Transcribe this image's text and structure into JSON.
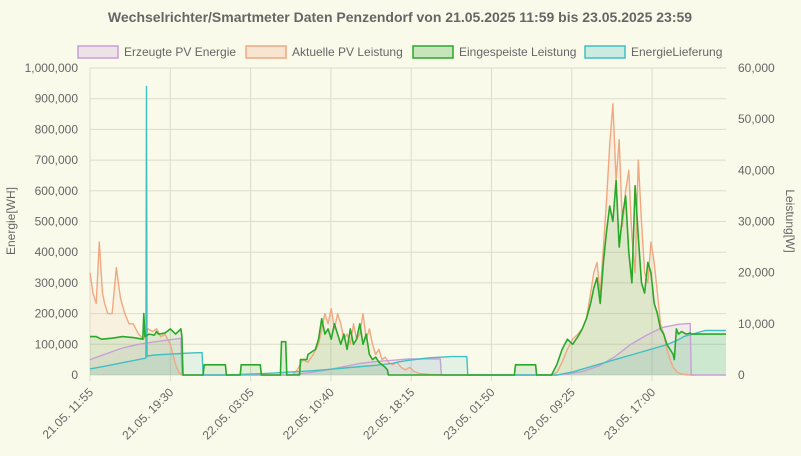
{
  "chart_data": {
    "type": "line",
    "title": "Wechselrichter/Smartmeter Daten Penzendorf von 21.05.2025 11:59 bis 23.05.2025 23:59",
    "ylabel_left": "Energie[WH]",
    "ylabel_right": "Leistung[W]",
    "ylim_left": [
      0,
      1000000
    ],
    "ylim_right": [
      0,
      60000
    ],
    "yticks_left": [
      "0",
      "100,000",
      "200,000",
      "300,000",
      "400,000",
      "500,000",
      "600,000",
      "700,000",
      "800,000",
      "900,000",
      "1,000,000"
    ],
    "yticks_right": [
      "0",
      "10,000",
      "20,000",
      "30,000",
      "40,000",
      "50,000",
      "60,000"
    ],
    "x_domain": [
      11.917,
      71.983
    ],
    "x_ticks": [
      {
        "t": 11.917,
        "label": "21.05. 11:55"
      },
      {
        "t": 19.5,
        "label": "21.05. 19:30"
      },
      {
        "t": 27.083,
        "label": "22.05. 03:05"
      },
      {
        "t": 34.667,
        "label": "22.05. 10:40"
      },
      {
        "t": 42.25,
        "label": "22.05. 18:15"
      },
      {
        "t": 49.833,
        "label": "23.05. 01:50"
      },
      {
        "t": 57.417,
        "label": "23.05. 09:25"
      },
      {
        "t": 65.0,
        "label": "23.05. 17:00"
      }
    ],
    "legend_position": "top",
    "grid": true,
    "series": [
      {
        "name": "Erzeugte PV Energie",
        "axis": "left",
        "stroke": "#c8a0d8",
        "fill": "rgba(200,160,216,0.15)",
        "x": [
          11.917,
          13.5,
          15,
          16.5,
          18,
          19.5,
          20.2,
          20.5,
          20.6,
          30.5,
          31.5,
          33,
          34.5,
          36,
          37.5,
          39,
          40.5,
          42,
          42.5,
          45,
          45.1,
          56,
          57,
          58.5,
          60,
          61.5,
          63,
          64.5,
          66,
          67.5,
          68.6,
          68.7,
          71.983
        ],
        "y": [
          50000,
          70000,
          88000,
          100000,
          108000,
          115000,
          118000,
          120000,
          0,
          0,
          3000,
          9000,
          18000,
          28000,
          38000,
          44000,
          48000,
          52000,
          52500,
          52500,
          0,
          0,
          3000,
          12000,
          30000,
          60000,
          100000,
          130000,
          155000,
          165000,
          168000,
          0,
          0
        ]
      },
      {
        "name": "Aktuelle PV Leistung",
        "axis": "right",
        "stroke": "#f0a880",
        "fill": "rgba(240,168,128,0.10)",
        "x": [
          11.917,
          12.2,
          12.5,
          12.8,
          13.1,
          13.3,
          13.6,
          14,
          14.4,
          14.8,
          15.2,
          15.6,
          16,
          16.5,
          17,
          17.4,
          17.8,
          18.2,
          18.6,
          19,
          19.5,
          20,
          20.3,
          20.6,
          31,
          31.5,
          32,
          32.5,
          33,
          33.5,
          33.8,
          34.1,
          34.4,
          34.7,
          35,
          35.3,
          35.6,
          35.9,
          36.2,
          36.5,
          36.8,
          37.1,
          37.4,
          37.7,
          38,
          38.3,
          38.6,
          38.9,
          39.2,
          39.5,
          39.8,
          40.1,
          40.5,
          40.9,
          41.3,
          41.7,
          42.1,
          42.5,
          43,
          44,
          45,
          45.5,
          55.5,
          56,
          56.5,
          57,
          57.5,
          58,
          58.4,
          58.8,
          59.2,
          59.5,
          59.8,
          60.1,
          60.4,
          60.7,
          61,
          61.3,
          61.6,
          61.9,
          62.2,
          62.5,
          62.8,
          63.1,
          63.4,
          63.7,
          64,
          64.3,
          64.6,
          64.9,
          65.2,
          65.5,
          65.8,
          66.1,
          66.4,
          66.7,
          67,
          67.4,
          67.8,
          68.2,
          68.6,
          69
        ],
        "y": [
          20000,
          16000,
          14000,
          26000,
          16000,
          14000,
          12000,
          12000,
          21000,
          15000,
          12000,
          10000,
          10000,
          8000,
          7000,
          9000,
          8500,
          9000,
          7500,
          8000,
          6000,
          2000,
          500,
          0,
          0,
          1000,
          3000,
          2500,
          4000,
          6000,
          9000,
          12000,
          10000,
          13000,
          9000,
          12000,
          10000,
          7000,
          8000,
          6000,
          10000,
          7000,
          8000,
          12000,
          7000,
          9000,
          6000,
          4000,
          5000,
          3000,
          3500,
          2500,
          2000,
          2500,
          1500,
          1000,
          1500,
          700,
          300,
          100,
          50,
          0,
          0,
          500,
          2500,
          5000,
          7000,
          8000,
          9000,
          11000,
          16000,
          20000,
          22000,
          16000,
          25000,
          34000,
          45000,
          53000,
          38000,
          46000,
          29000,
          36000,
          40000,
          27000,
          20000,
          42000,
          30000,
          20000,
          18000,
          26000,
          22000,
          16000,
          10000,
          8000,
          5000,
          3000,
          1500,
          500,
          200,
          100,
          0,
          0
        ]
      },
      {
        "name": "Eingespeiste Leistung",
        "axis": "right",
        "stroke": "#2aa82a",
        "fill": "rgba(42,168,42,0.12)",
        "x": [
          11.917,
          12.5,
          13,
          14,
          15,
          16,
          16.9,
          17,
          17.1,
          17.5,
          18,
          18.2,
          18.4,
          19,
          19.5,
          20,
          20.5,
          20.6,
          20.7,
          22.6,
          22.7,
          24.7,
          24.8,
          26.1,
          26.2,
          28,
          28.1,
          29.9,
          30,
          30.4,
          30.5,
          31.7,
          31.8,
          32.4,
          32.5,
          33.2,
          33.5,
          33.8,
          34.1,
          34.4,
          34.7,
          35,
          35.3,
          35.6,
          35.9,
          36.2,
          36.5,
          36.8,
          37.1,
          37.4,
          37.7,
          38,
          38.3,
          38.6,
          38.9,
          39.2,
          39.5,
          39.8,
          40,
          40.1,
          52,
          52.1,
          54,
          54.1,
          55.5,
          56,
          56.5,
          57,
          57.5,
          58,
          58.4,
          58.8,
          59.2,
          59.5,
          59.8,
          60.1,
          60.4,
          60.7,
          61,
          61.3,
          61.6,
          61.9,
          62.2,
          62.5,
          62.8,
          63.1,
          63.4,
          63.7,
          64,
          64.3,
          64.6,
          64.9,
          65.2,
          65.5,
          65.8,
          66.1,
          66.4,
          66.7,
          67,
          67.1,
          67.3,
          67.5,
          67.8,
          68.2,
          68.6,
          68.7,
          71.983
        ],
        "y": [
          7500,
          7500,
          7000,
          7200,
          7500,
          7300,
          7000,
          12000,
          7500,
          8000,
          7800,
          8500,
          8000,
          8200,
          9000,
          8000,
          9000,
          7500,
          0,
          0,
          2000,
          2000,
          0,
          0,
          2000,
          2000,
          0,
          0,
          6500,
          6500,
          0,
          0,
          3000,
          3000,
          4000,
          5000,
          7000,
          11000,
          8000,
          9000,
          7000,
          10000,
          8000,
          6000,
          8000,
          5000,
          9000,
          6000,
          7000,
          10000,
          6000,
          8000,
          4000,
          3000,
          3500,
          2500,
          2000,
          1500,
          1000,
          0,
          0,
          2000,
          2000,
          0,
          0,
          2000,
          5000,
          7000,
          6000,
          7500,
          9000,
          11000,
          14000,
          17000,
          19000,
          14000,
          22000,
          28000,
          33000,
          30000,
          38000,
          25000,
          31000,
          35000,
          24000,
          18000,
          37000,
          27000,
          18000,
          16000,
          22000,
          20000,
          14000,
          12000,
          9000,
          8000,
          6000,
          5000,
          4000,
          3000,
          9000,
          8000,
          8500,
          8000,
          8200,
          8000,
          8000
        ]
      },
      {
        "name": "EnergieLieferung",
        "axis": "left",
        "stroke": "#40c0c0",
        "fill": "rgba(64,192,192,0.12)",
        "x": [
          11.917,
          13.5,
          15,
          16.5,
          17.2,
          17.25,
          17.3,
          17.35,
          18,
          19.5,
          20.5,
          21.5,
          22.5,
          22.6,
          25,
          27,
          29,
          31,
          33,
          35,
          37,
          39,
          40.5,
          41,
          42,
          43,
          44,
          45,
          45.5,
          46,
          47.5,
          47.6,
          56,
          57.5,
          59,
          60.5,
          62,
          63.5,
          65,
          66.5,
          67.5,
          68,
          69,
          70,
          71.983
        ],
        "y": [
          20000,
          30000,
          40000,
          50000,
          55000,
          940000,
          60000,
          62000,
          65000,
          68000,
          70000,
          72000,
          73000,
          0,
          0,
          3000,
          6000,
          10000,
          14000,
          20000,
          26000,
          32000,
          38000,
          42000,
          48000,
          52000,
          56000,
          58000,
          59000,
          60000,
          60000,
          0,
          0,
          10000,
          25000,
          40000,
          55000,
          70000,
          85000,
          100000,
          115000,
          125000,
          135000,
          145000,
          145000
        ]
      }
    ]
  }
}
